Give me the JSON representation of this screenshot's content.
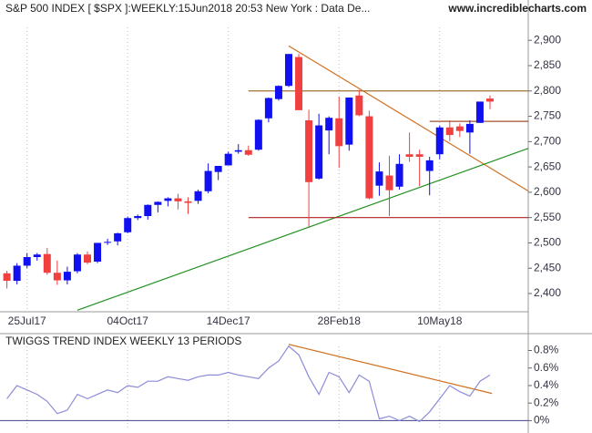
{
  "chart_data": [
    {
      "type": "candlestick",
      "title": "S&P 500 INDEX [ $SPX ]:WEEKLY:15Jun2018 20:53 New York : Data De...",
      "source": "www.incrediblecharts.com",
      "categories": [
        null,
        null,
        "25Jul17",
        null,
        null,
        null,
        null,
        null,
        null,
        null,
        null,
        null,
        "04Oct17",
        null,
        null,
        null,
        null,
        null,
        null,
        null,
        null,
        null,
        "14Dec17",
        null,
        null,
        null,
        null,
        null,
        null,
        null,
        null,
        null,
        null,
        "28Feb18",
        null,
        null,
        null,
        null,
        null,
        null,
        null,
        null,
        null,
        "10May18",
        null,
        null,
        null,
        null,
        null
      ],
      "open": [
        2440,
        2425,
        2455,
        2472,
        2478,
        2441,
        2426,
        2444,
        2477,
        2463,
        2501,
        2503,
        2521,
        2549,
        2553,
        2575,
        2583,
        2588,
        2582,
        2583,
        2602,
        2640,
        2653,
        2680,
        2683,
        2684,
        2746,
        2784,
        2810,
        2867,
        2742,
        2627,
        2722,
        2746,
        2694,
        2791,
        2750,
        2613,
        2633,
        2611,
        2675,
        2675,
        2642,
        2675,
        2728,
        2730,
        2718,
        2737,
        2785
      ],
      "high": [
        2445,
        2460,
        2480,
        2480,
        2490,
        2465,
        2453,
        2480,
        2483,
        2500,
        2508,
        2520,
        2552,
        2556,
        2576,
        2582,
        2590,
        2597,
        2590,
        2605,
        2657,
        2652,
        2680,
        2695,
        2692,
        2744,
        2787,
        2811,
        2873,
        2873,
        2763,
        2755,
        2750,
        2789,
        2787,
        2802,
        2761,
        2659,
        2672,
        2675,
        2718,
        2684,
        2670,
        2732,
        2742,
        2736,
        2742,
        2779,
        2791
      ],
      "low": [
        2410,
        2418,
        2450,
        2465,
        2437,
        2417,
        2418,
        2440,
        2458,
        2460,
        2496,
        2495,
        2519,
        2545,
        2546,
        2560,
        2572,
        2566,
        2557,
        2577,
        2598,
        2624,
        2653,
        2676,
        2672,
        2682,
        2738,
        2781,
        2808,
        2762,
        2532,
        2625,
        2675,
        2648,
        2682,
        2750,
        2586,
        2593,
        2553,
        2605,
        2660,
        2612,
        2594,
        2665,
        2701,
        2709,
        2676,
        2737,
        2764
      ],
      "close": [
        2425,
        2455,
        2472,
        2477,
        2441,
        2426,
        2443,
        2477,
        2461,
        2500,
        2502,
        2519,
        2549,
        2553,
        2575,
        2581,
        2588,
        2582,
        2579,
        2602,
        2642,
        2652,
        2676,
        2683,
        2674,
        2743,
        2786,
        2810,
        2873,
        2762,
        2620,
        2732,
        2747,
        2691,
        2787,
        2752,
        2588,
        2641,
        2604,
        2656,
        2670,
        2670,
        2663,
        2728,
        2713,
        2721,
        2735,
        2779,
        2779
      ],
      "up_color": "#1010f0",
      "down_color": "#f04040",
      "ylim": [
        2364,
        2976
      ],
      "yticks": [
        {
          "value": 2400,
          "label": "2,400"
        },
        {
          "value": 2450,
          "label": "2,450"
        },
        {
          "value": 2500,
          "label": "2,500"
        },
        {
          "value": 2550,
          "label": "2,550"
        },
        {
          "value": 2600,
          "label": "2,600"
        },
        {
          "value": 2650,
          "label": "2,650"
        },
        {
          "value": 2700,
          "label": "2,700"
        },
        {
          "value": 2750,
          "label": "2,750"
        },
        {
          "value": 2800,
          "label": "2,800"
        },
        {
          "value": 2850,
          "label": "2,850"
        },
        {
          "value": 2900,
          "label": "2,900"
        }
      ],
      "grid": true,
      "trendlines": [
        {
          "start": 28,
          "end": 52,
          "values": [
            2889,
            2600
          ],
          "color": "#d07020"
        },
        {
          "start": 7,
          "end": 52,
          "values": [
            2367,
            2688
          ],
          "color": "#209020"
        },
        {
          "start": 24,
          "end": 52,
          "values": [
            2800,
            2800
          ],
          "color": "#a07030"
        },
        {
          "start": 42,
          "end": 52,
          "values": [
            2740,
            2740
          ],
          "color": "#a05030"
        },
        {
          "start": 24,
          "end": 52,
          "values": [
            2550,
            2550
          ],
          "color": "#b02020"
        }
      ]
    },
    {
      "type": "line",
      "title": "TWIGGS TREND INDEX WEEKLY 13 PERIODS",
      "series": [
        {
          "color": "#8c8cd8",
          "values": [
            0.25,
            0.4,
            0.35,
            0.3,
            0.22,
            0.08,
            0.12,
            0.3,
            0.25,
            0.3,
            0.35,
            0.32,
            0.4,
            0.38,
            0.45,
            0.45,
            0.5,
            0.48,
            0.46,
            0.5,
            0.52,
            0.52,
            0.55,
            0.52,
            0.5,
            0.48,
            0.6,
            0.68,
            0.85,
            0.75,
            0.5,
            0.3,
            0.55,
            0.5,
            0.32,
            0.52,
            0.45,
            0.02,
            0.05,
            0.0,
            0.05,
            -0.01,
            0.1,
            0.25,
            0.4,
            0.33,
            0.28,
            0.45,
            0.52
          ]
        }
      ],
      "ylim": [
        -0.11,
        0.93
      ],
      "yticks": [
        {
          "value": 0,
          "label": "0%"
        },
        {
          "value": 0.2,
          "label": "0.2%"
        },
        {
          "value": 0.4,
          "label": "0.4%"
        },
        {
          "value": 0.6,
          "label": "0.6%"
        },
        {
          "value": 0.8,
          "label": "0.8%"
        }
      ],
      "zero_line_color": "#404090",
      "trendlines": [
        {
          "start": 28,
          "end": 48.2,
          "values": [
            0.87,
            0.31
          ],
          "color": "#d07020"
        }
      ]
    }
  ]
}
